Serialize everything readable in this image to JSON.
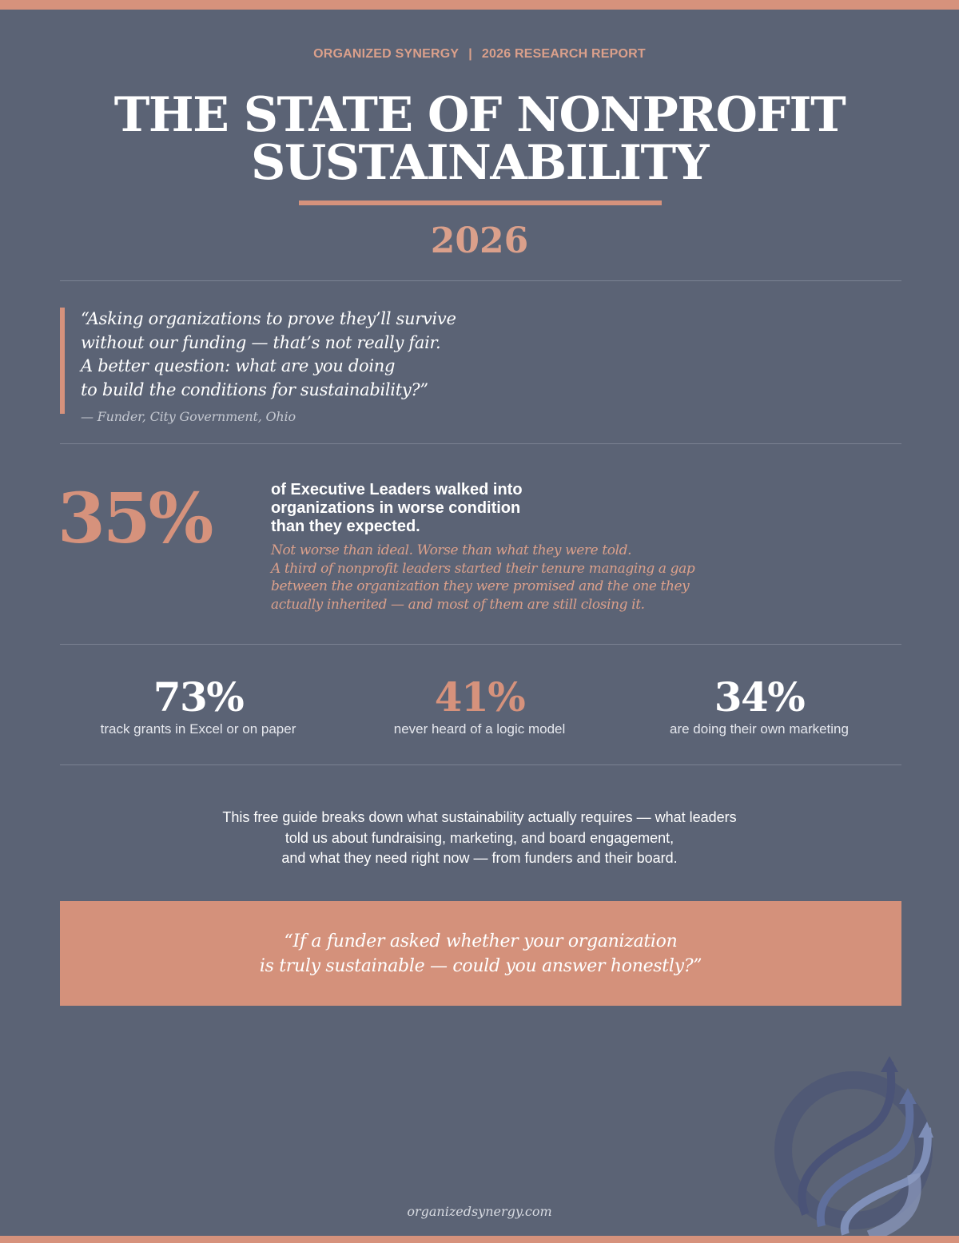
{
  "header": {
    "org": "ORGANIZED SYNERGY",
    "separator": "|",
    "report": "2026 RESEARCH REPORT"
  },
  "title": {
    "line1": "THE STATE OF NONPROFIT",
    "line2": "SUSTAINABILITY",
    "year": "2026"
  },
  "quote": {
    "lines": [
      "“Asking organizations to prove they’ll survive",
      "without our funding — that’s not really fair.",
      "A better question: what are you doing",
      "to build the conditions for sustainability?”"
    ],
    "attribution": "— Funder, City Government, Ohio"
  },
  "feature_stat": {
    "value": "35%",
    "headline": [
      "of Executive Leaders walked into",
      "organizations in worse condition",
      "than they expected."
    ],
    "body": [
      "Not worse than ideal. Worse than what they were told.",
      "A third of nonprofit leaders started their tenure managing a gap",
      "between the organization they were promised and the one they",
      "actually inherited — and most of them are still closing it."
    ]
  },
  "stats": [
    {
      "value": "73%",
      "label": "track grants in Excel or on paper"
    },
    {
      "value": "41%",
      "label": "never heard of a logic model"
    },
    {
      "value": "34%",
      "label": "are doing their own marketing"
    }
  ],
  "guide": {
    "lines": [
      "This free guide breaks down what sustainability actually requires — what leaders",
      "told us about fundraising, marketing, and board engagement,",
      "and what they need right now — from funders and their board."
    ]
  },
  "callout": {
    "lines": [
      "“If a funder asked whether your organization",
      "is truly sustainable — could you answer honestly?”"
    ]
  },
  "footer": {
    "url": "organizedsynergy.com"
  },
  "colors": {
    "background": "#5b6375",
    "accent": "#d6927c",
    "text": "#ffffff"
  },
  "icons": {
    "logo": "organized-synergy-swirl-arrows-logo"
  }
}
